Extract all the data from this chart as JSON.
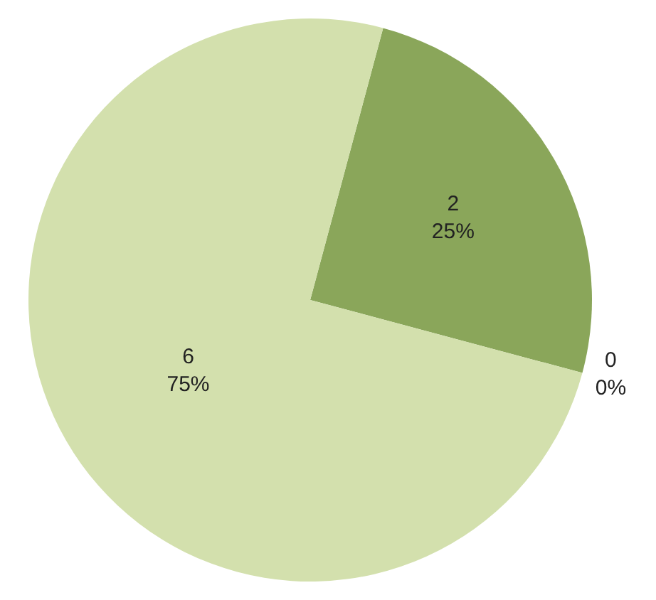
{
  "chart_data": {
    "type": "pie",
    "categories": [
      null,
      null,
      null
    ],
    "values": [
      2,
      0,
      6
    ],
    "colors": [
      "#8aa65a",
      "#b5c98a",
      "#d3e0ad"
    ],
    "value_labels": [
      "2\n25%",
      "0\n0%",
      "6\n75%"
    ],
    "legend": false
  }
}
